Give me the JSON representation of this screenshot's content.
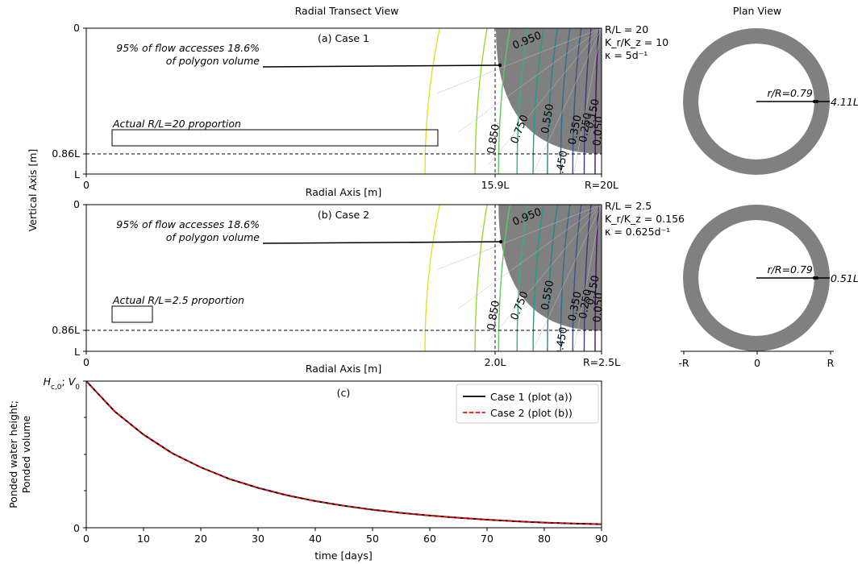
{
  "figure_titles": {
    "transect": "Radial Transect View",
    "plan": "Plan View"
  },
  "chart_data": [
    {
      "type": "contour",
      "panel_label": "(a) Case 1",
      "xlabel": "Radial Axis [m]",
      "ylabel": "Vertical Axis [m]",
      "x_ticks": [
        "0",
        "15.9L",
        "R=20L"
      ],
      "y_ticks": [
        "0",
        "0.86L",
        "L"
      ],
      "xlim": [
        0,
        20
      ],
      "ylim": [
        0,
        1
      ],
      "y_inverted": true,
      "params": [
        "R/L = 20",
        "K_r/K_z = 10",
        "κ = 5d⁻¹"
      ],
      "annotation": [
        "95% of flow accesses 18.6%",
        "of polygon volume"
      ],
      "proportion_label": "Actual R/L=20 proportion",
      "proportion_ratio": 20,
      "boundary_r": 15.9,
      "boundary_z": 0.86,
      "contour_levels": [
        0.95,
        0.85,
        0.75,
        0.65,
        0.55,
        0.45,
        0.35,
        0.25,
        0.15,
        0.05
      ],
      "contour_labels": [
        "0.950",
        "0.850",
        "0.750",
        "0.550",
        "0.450",
        "0.350",
        "0.250",
        "0.150",
        "0.050"
      ],
      "shaded_region": "flow region"
    },
    {
      "type": "contour",
      "panel_label": "(b) Case 2",
      "xlabel": "Radial Axis [m]",
      "ylabel": "Vertical Axis [m]",
      "x_ticks": [
        "0",
        "2.0L",
        "R=2.5L"
      ],
      "y_ticks": [
        "0",
        "0.86L",
        "L"
      ],
      "xlim": [
        0,
        2.5
      ],
      "ylim": [
        0,
        1
      ],
      "y_inverted": true,
      "params": [
        "R/L = 2.5",
        "K_r/K_z = 0.156",
        "κ = 0.625d⁻¹"
      ],
      "annotation": [
        "95% of flow accesses 18.6%",
        "of polygon volume"
      ],
      "proportion_label": "Actual R/L=2.5 proportion",
      "proportion_ratio": 2.5,
      "boundary_r": 2.0,
      "boundary_z": 0.86,
      "contour_levels": [
        0.95,
        0.85,
        0.75,
        0.65,
        0.55,
        0.45,
        0.35,
        0.25,
        0.15,
        0.05
      ],
      "contour_labels": [
        "0.950",
        "0.850",
        "0.750",
        "0.550",
        "0.450",
        "0.350",
        "0.250",
        "0.150",
        "0.050"
      ],
      "shaded_region": "flow region"
    },
    {
      "type": "annulus",
      "panel": "plan-a",
      "r_over_R": 0.79,
      "label": "r/R=0.79",
      "width_label": "4.11L"
    },
    {
      "type": "annulus",
      "panel": "plan-b",
      "r_over_R": 0.79,
      "label": "r/R=0.79",
      "width_label": "0.51L",
      "x_ticks": [
        "-R",
        "0",
        "R"
      ]
    },
    {
      "type": "line",
      "panel_label": "(c)",
      "xlabel": "time [days]",
      "ylabel": [
        "Ponded water height;",
        "Ponded volume"
      ],
      "y_top_label": "H_{c,0}; V_0",
      "y_bottom_label": "0",
      "xlim": [
        0,
        90
      ],
      "ylim": [
        0,
        1
      ],
      "x_ticks": [
        0,
        10,
        20,
        30,
        40,
        50,
        60,
        70,
        80,
        90
      ],
      "x_tick_labels": [
        "0",
        "10",
        "20",
        "30",
        "40",
        "50",
        "60",
        "70",
        "80",
        "90"
      ],
      "x": [
        0,
        5,
        10,
        15,
        20,
        25,
        30,
        35,
        40,
        45,
        50,
        55,
        60,
        65,
        70,
        75,
        80,
        85,
        90
      ],
      "series": [
        {
          "name": "Case 1 (plot (a))",
          "color": "#000000",
          "dash": "solid",
          "values": [
            1.0,
            0.792,
            0.635,
            0.508,
            0.412,
            0.333,
            0.272,
            0.222,
            0.182,
            0.15,
            0.123,
            0.101,
            0.083,
            0.068,
            0.055,
            0.044,
            0.035,
            0.029,
            0.024
          ]
        },
        {
          "name": "Case 2 (plot (b))",
          "color": "#ff0000",
          "dash": "dashed",
          "values": [
            1.0,
            0.792,
            0.635,
            0.508,
            0.412,
            0.333,
            0.272,
            0.222,
            0.182,
            0.15,
            0.123,
            0.101,
            0.083,
            0.068,
            0.055,
            0.044,
            0.035,
            0.029,
            0.024
          ]
        }
      ],
      "legend_position": "upper right"
    }
  ]
}
